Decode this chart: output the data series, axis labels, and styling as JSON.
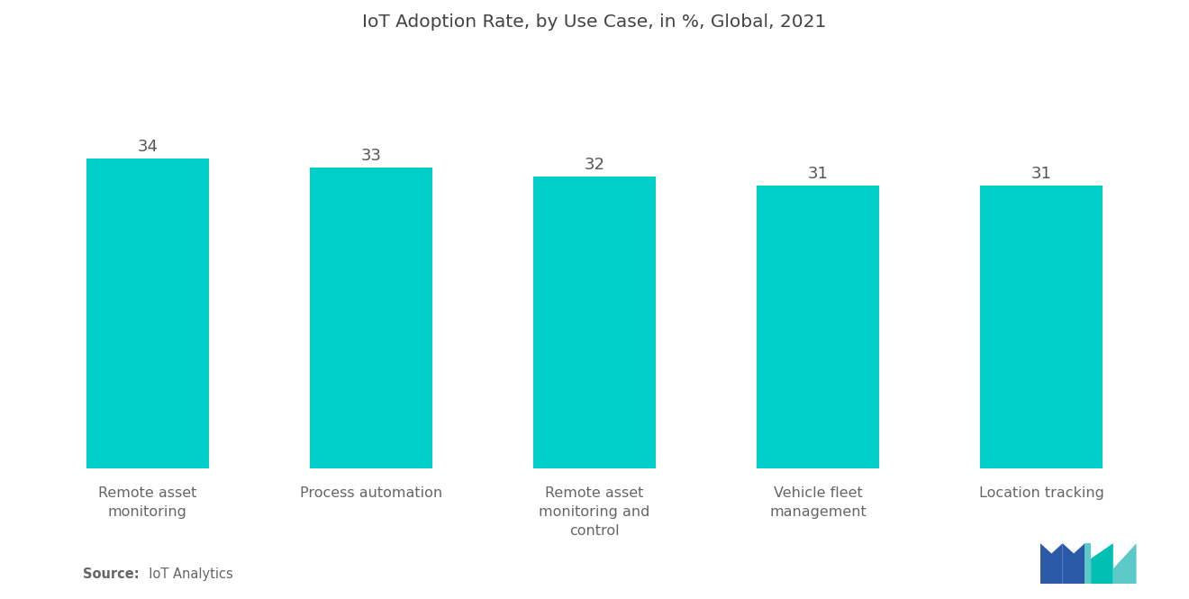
{
  "title": "IoT Adoption Rate, by Use Case, in %, Global, 2021",
  "categories": [
    "Remote asset\nmonitoring",
    "Process automation",
    "Remote asset\nmonitoring and\ncontrol",
    "Vehicle fleet\nmanagement",
    "Location tracking"
  ],
  "values": [
    34,
    33,
    32,
    31,
    31
  ],
  "bar_color": "#00CEC9",
  "value_color": "#555555",
  "title_color": "#444444",
  "label_color": "#666666",
  "background_color": "#FFFFFF",
  "source_bold": "Source:",
  "source_normal": "  IoT Analytics",
  "ylim": [
    0,
    45
  ],
  "bar_width": 0.55,
  "title_fontsize": 14.5,
  "label_fontsize": 11.5,
  "value_fontsize": 13,
  "logo_left_color": "#2B5BA8",
  "logo_teal_color": "#00BFB3",
  "logo_light_teal": "#5CC8C8"
}
